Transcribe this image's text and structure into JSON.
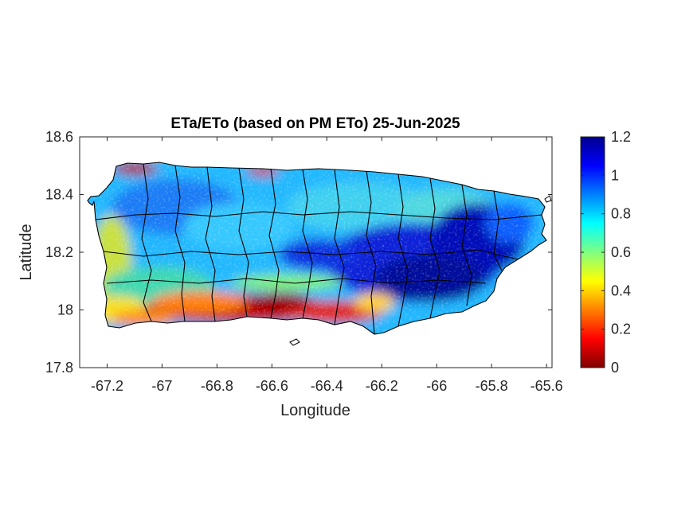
{
  "map": {
    "title": "ETa/ETo (based on PM ETo) 25-Jun-2025",
    "xlabel": "Longitude",
    "ylabel": "Latitude",
    "xlim": [
      -67.3,
      -65.58
    ],
    "ylim": [
      17.8,
      18.6
    ],
    "xticks": [
      -67.2,
      -67,
      -66.8,
      -66.6,
      -66.4,
      -66.2,
      -66,
      -65.8,
      -65.6
    ],
    "xtick_labels": [
      "-67.2",
      "-67",
      "-66.8",
      "-66.6",
      "-66.4",
      "-66.2",
      "-66",
      "-65.8",
      "-65.6"
    ],
    "yticks": [
      17.8,
      18,
      18.2,
      18.4,
      18.6
    ],
    "ytick_labels": [
      "17.8",
      "18",
      "18.2",
      "18.4",
      "18.6"
    ],
    "colorbar": {
      "min": 0,
      "max": 1.2,
      "ticks": [
        0,
        0.2,
        0.4,
        0.6,
        0.8,
        1,
        1.2
      ],
      "tick_labels": [
        "0",
        "0.2",
        "0.4",
        "0.6",
        "0.8",
        "1",
        "1.2"
      ],
      "colormap": "jet",
      "colors": [
        "#800000",
        "#ff0000",
        "#ff8000",
        "#ffff00",
        "#80ff80",
        "#00ffff",
        "#0080ff",
        "#0000ff",
        "#00008f"
      ]
    },
    "colors": {
      "background": "#ffffff",
      "boundaries": "#000000",
      "low": "#8b0000",
      "mid": "#00c8ff",
      "high": "#0000b4"
    }
  }
}
